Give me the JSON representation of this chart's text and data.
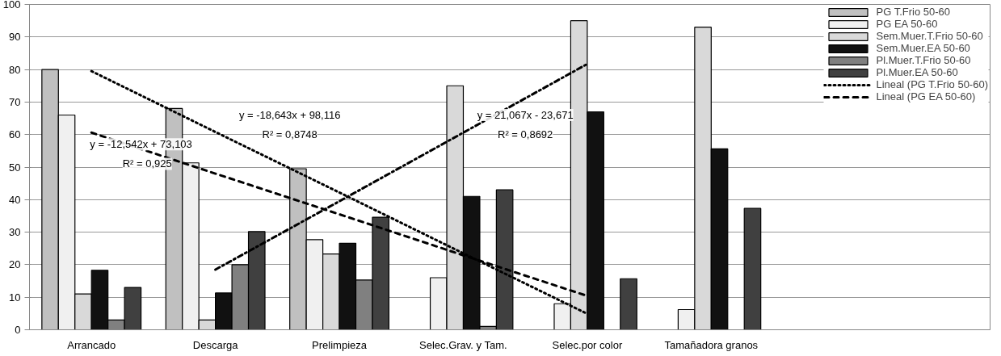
{
  "chart_data": {
    "type": "bar",
    "categories": [
      "Arrancado",
      "Descarga",
      "Prelimpieza",
      "Selec.Grav. y Tam.",
      "Selec.por color",
      "Tamañadora granos"
    ],
    "series": [
      {
        "name": "PG T.Frio 50-60",
        "color": "#c0c0c0",
        "values": [
          80,
          68,
          49.5,
          null,
          null,
          null
        ]
      },
      {
        "name": "PG EA 50-60",
        "color": "#f0f0f0",
        "values": [
          66,
          51.3,
          27.7,
          16,
          8,
          6.2
        ]
      },
      {
        "name": "Sem.Muer.T.Frio 50-60",
        "color": "#d9d9d9",
        "values": [
          11,
          3,
          23.3,
          75,
          95,
          93
        ]
      },
      {
        "name": "Sem.Muer.EA 50-60",
        "color": "#111111",
        "values": [
          18.3,
          11.3,
          26.6,
          41,
          67,
          55.6
        ]
      },
      {
        "name": "Pl.Muer.T.Frio 50-60",
        "color": "#808080",
        "values": [
          3,
          20,
          15.3,
          1,
          null,
          null
        ]
      },
      {
        "name": "Pl.Muer.EA 50-60",
        "color": "#404040",
        "values": [
          13,
          30.2,
          34.6,
          43,
          15.7,
          37.3
        ]
      },
      {
        "name": "Lineal (PG T.Frio 50-60)",
        "type": "line",
        "line_style": "dotted",
        "color": "#000000",
        "values": [
          79.5,
          60.8,
          42.2,
          23.5,
          4.9,
          null
        ]
      },
      {
        "name": "Lineal (PG EA 50-60)",
        "type": "line",
        "line_style": "dashed",
        "color": "#000000",
        "values": [
          60.6,
          48.0,
          35.5,
          22.9,
          10.4,
          null
        ]
      },
      {
        "type": "line",
        "line_style": "dashdot",
        "color": "#000000",
        "values": [
          null,
          18.5,
          39.5,
          60.6,
          81.7,
          null
        ]
      }
    ],
    "ylim": [
      0,
      100
    ],
    "yticks": [
      0,
      10,
      20,
      30,
      40,
      50,
      60,
      70,
      80,
      90,
      100
    ],
    "grid": "y",
    "legend": "top right",
    "annotations": [
      "y = -12,542x + 73,103",
      "R² = 0,925",
      "y = -18,643x + 98,116",
      "R² = 0,8748",
      "y = 21,067x - 23,671",
      "R² = 0,8692"
    ]
  }
}
